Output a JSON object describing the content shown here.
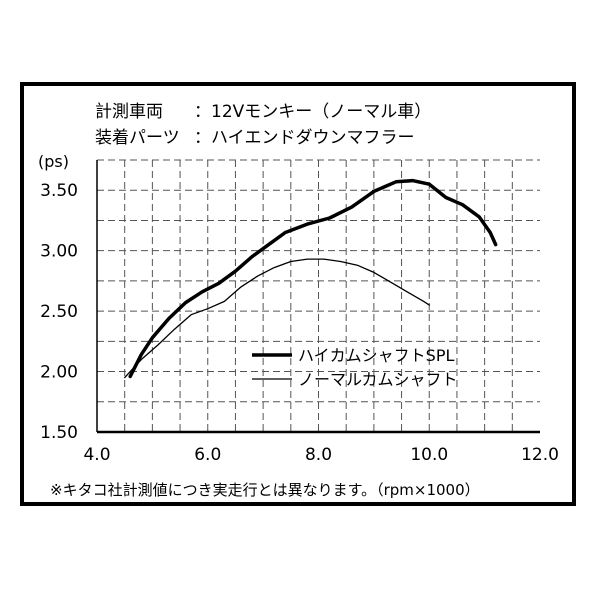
{
  "header": {
    "line1_label": "計測車両",
    "line1_value": "：12Vモンキー（ノーマル車）",
    "line2_label": "装着パーツ",
    "line2_value": "：ハイエンドダウンマフラー"
  },
  "note": "※キタコ社計測値につき実走行とは異なります。（rpm×1000）",
  "chart_data": {
    "type": "line",
    "ylabel": "(ps)",
    "xlim": [
      4.0,
      12.0
    ],
    "ylim": [
      1.5,
      3.75
    ],
    "x_ticks": [
      "4.0",
      "6.0",
      "8.0",
      "10.0",
      "12.0"
    ],
    "y_ticks": [
      "1.50",
      "2.00",
      "2.50",
      "3.00",
      "3.50"
    ],
    "grid": "dashed",
    "legend_position": "center-right",
    "series": [
      {
        "name": "ハイカムシャフトSPL",
        "color": "#000000",
        "x": [
          4.6,
          4.8,
          5.0,
          5.3,
          5.6,
          5.9,
          6.2,
          6.5,
          6.8,
          7.1,
          7.4,
          7.8,
          8.2,
          8.6,
          9.0,
          9.4,
          9.7,
          10.0,
          10.3,
          10.6,
          10.9,
          11.1,
          11.2
        ],
        "y": [
          1.96,
          2.14,
          2.28,
          2.44,
          2.57,
          2.66,
          2.73,
          2.83,
          2.95,
          3.05,
          3.15,
          3.22,
          3.27,
          3.36,
          3.49,
          3.57,
          3.58,
          3.55,
          3.44,
          3.38,
          3.28,
          3.15,
          3.05
        ]
      },
      {
        "name": "ノーマルカムシャフト",
        "color": "#000000",
        "x": [
          4.5,
          4.8,
          5.1,
          5.4,
          5.7,
          6.0,
          6.3,
          6.6,
          6.9,
          7.2,
          7.5,
          7.8,
          8.1,
          8.4,
          8.7,
          9.0,
          9.3,
          9.6,
          9.9,
          10.0
        ],
        "y": [
          1.95,
          2.1,
          2.22,
          2.35,
          2.47,
          2.52,
          2.58,
          2.7,
          2.79,
          2.86,
          2.91,
          2.93,
          2.93,
          2.91,
          2.88,
          2.82,
          2.74,
          2.66,
          2.58,
          2.55
        ]
      }
    ]
  }
}
